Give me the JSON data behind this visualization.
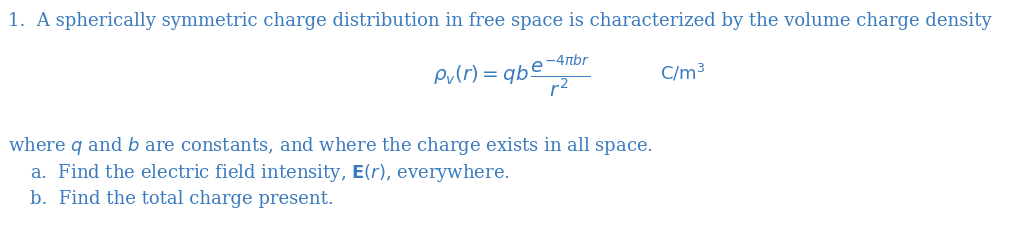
{
  "background_color": "#ffffff",
  "text_color": "#3a7abf",
  "fig_width": 10.24,
  "fig_height": 2.27,
  "dpi": 100,
  "line1": "\\textbf{1.}\\;\\; A spherically symmetric charge distribution in free space is characterized by the volume charge density",
  "formula": "$\\rho_v(r) = qb\\,\\dfrac{e^{-4\\pi br}}{r^2}$\\quad$\\mathrm{C/m^3}$",
  "line3": "where $q$ and $b$ are constants, and where the charge exists in all space.",
  "line4a": "a.\\;\\; Find the electric field intensity, $\\mathbf{E}$$(r)$, everywhere.",
  "line4b": "b.\\;\\; Find the total charge present.",
  "fontsize": 13.0
}
